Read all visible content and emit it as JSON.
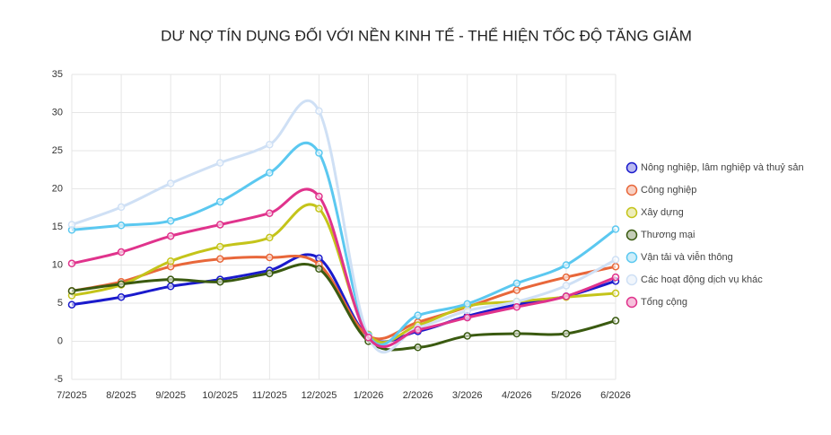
{
  "chart_data": {
    "type": "line",
    "title": "DƯ NỢ TÍN DỤNG ĐỐI VỚI NỀN KINH TẾ - THỂ HIỆN TỐC ĐỘ TĂNG GIẢM",
    "categories": [
      "7/2025",
      "8/2025",
      "9/2025",
      "10/2025",
      "11/2025",
      "12/2025",
      "1/2026",
      "2/2026",
      "3/2026",
      "4/2026",
      "5/2026",
      "6/2026"
    ],
    "series": [
      {
        "name": "Nông nghiệp, lâm nghiệp và thuỷ sản",
        "color": "#1a1acc",
        "values": [
          4.8,
          5.8,
          7.2,
          8.1,
          9.3,
          10.9,
          0.6,
          1.3,
          3.3,
          4.8,
          5.9,
          7.9
        ]
      },
      {
        "name": "Công nghiệp",
        "color": "#e8673a",
        "values": [
          6.6,
          7.8,
          9.8,
          10.8,
          11.0,
          10.1,
          0.7,
          2.5,
          4.5,
          6.7,
          8.4,
          9.8
        ]
      },
      {
        "name": "Xây dựng",
        "color": "#c4c41a",
        "values": [
          6.0,
          7.4,
          10.5,
          12.4,
          13.6,
          17.4,
          0.9,
          2.1,
          4.6,
          5.2,
          5.8,
          6.3
        ]
      },
      {
        "name": "Thương mại",
        "color": "#3a5a10",
        "values": [
          6.6,
          7.5,
          8.1,
          7.8,
          8.9,
          9.5,
          0.0,
          -0.8,
          0.7,
          1.0,
          1.0,
          2.7
        ]
      },
      {
        "name": "Vận tải và viễn thông",
        "color": "#5bc8f0",
        "values": [
          14.6,
          15.2,
          15.8,
          18.3,
          22.1,
          24.7,
          0.8,
          3.4,
          4.9,
          7.6,
          10.0,
          14.7
        ]
      },
      {
        "name": "Các hoạt động dịch vụ khác",
        "color": "#cfe0f5",
        "values": [
          15.3,
          17.6,
          20.7,
          23.4,
          25.8,
          30.2,
          0.6,
          1.8,
          4.0,
          5.2,
          7.3,
          10.7
        ]
      },
      {
        "name": "Tổng cộng",
        "color": "#e0338c",
        "values": [
          10.2,
          11.7,
          13.8,
          15.3,
          16.8,
          19.0,
          0.5,
          1.5,
          3.1,
          4.5,
          5.9,
          8.4
        ]
      }
    ],
    "ylim": [
      -5,
      35
    ],
    "yticks": [
      -5,
      0,
      5,
      10,
      15,
      20,
      25,
      30,
      35
    ],
    "grid": true,
    "legend_position": "right"
  }
}
